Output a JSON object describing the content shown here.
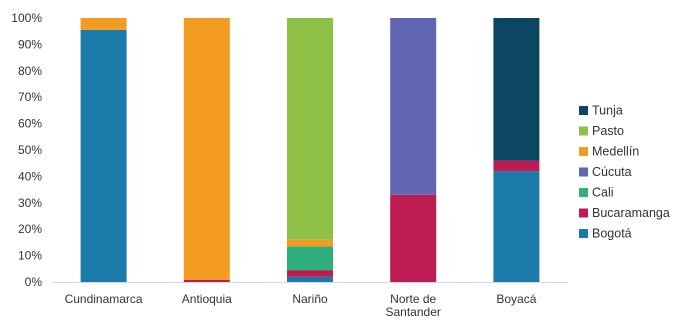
{
  "chart_data": {
    "type": "bar",
    "stacked": true,
    "percent": true,
    "title": "",
    "xlabel": "",
    "ylabel": "",
    "ylim": [
      0,
      100
    ],
    "y_ticks": [
      "0%",
      "10%",
      "20%",
      "30%",
      "40%",
      "50%",
      "60%",
      "70%",
      "80%",
      "90%",
      "100%"
    ],
    "grid": false,
    "legend_position": "right",
    "categories": [
      [
        "Cundinamarca"
      ],
      [
        "Antioquia"
      ],
      [
        "Nariño"
      ],
      [
        "Norte de",
        "Santander"
      ],
      [
        "Boyacá"
      ]
    ],
    "series": [
      {
        "name": "Bogotá",
        "color": "#1a7aa8",
        "values": [
          95.5,
          0,
          2,
          0,
          42
        ]
      },
      {
        "name": "Bucaramanga",
        "color": "#be1b55",
        "values": [
          0,
          0.8,
          2.5,
          33,
          4
        ]
      },
      {
        "name": "Cali",
        "color": "#2fae7e",
        "values": [
          0,
          0,
          9,
          0,
          0
        ]
      },
      {
        "name": "Cúcuta",
        "color": "#6166b3",
        "values": [
          0,
          0,
          0,
          67,
          0
        ]
      },
      {
        "name": "Medellín",
        "color": "#f49c22",
        "values": [
          4.5,
          99.2,
          2.5,
          0,
          0
        ]
      },
      {
        "name": "Pasto",
        "color": "#8dc044",
        "values": [
          0,
          0,
          84,
          0,
          0
        ]
      },
      {
        "name": "Tunja",
        "color": "#0b4662",
        "values": [
          0,
          0,
          0,
          0,
          54
        ]
      }
    ]
  }
}
